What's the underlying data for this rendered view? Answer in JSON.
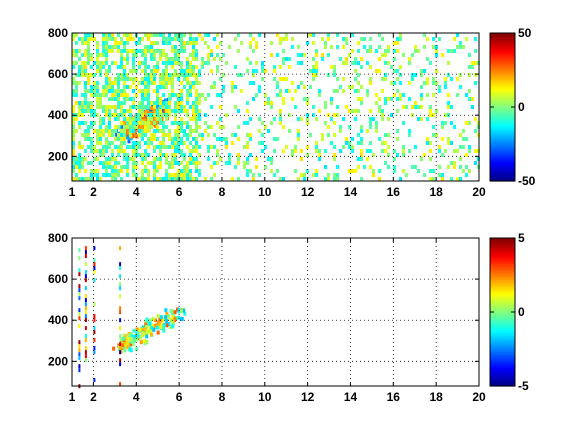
{
  "chart_data": [
    {
      "type": "heatmap",
      "title": "",
      "xlabel": "",
      "ylabel": "",
      "xlim": [
        1,
        20
      ],
      "ylim": [
        80,
        800
      ],
      "x_ticks": [
        1,
        2,
        4,
        6,
        8,
        10,
        12,
        14,
        16,
        18,
        20
      ],
      "y_ticks": [
        200,
        400,
        600,
        800
      ],
      "grid": true,
      "colormap": "jet",
      "colorbar": {
        "range": [
          -50,
          50
        ],
        "ticks": [
          -50,
          0,
          50
        ]
      },
      "features": [
        {
          "kind": "diagonal-ridge",
          "x_range": [
            3.3,
            5.3
          ],
          "y_range": [
            300,
            460
          ],
          "value": -30
        },
        {
          "kind": "diagonal-ridge",
          "x_range": [
            3.5,
            5.0
          ],
          "y_range": [
            330,
            420
          ],
          "value": 30
        },
        {
          "kind": "scatter-noise",
          "x_range": [
            1,
            20
          ],
          "y_range": [
            80,
            800
          ],
          "value_range": [
            -15,
            15
          ]
        }
      ]
    },
    {
      "type": "heatmap",
      "title": "",
      "xlabel": "",
      "ylabel": "",
      "xlim": [
        1,
        20
      ],
      "ylim": [
        80,
        800
      ],
      "x_ticks": [
        1,
        2,
        4,
        6,
        8,
        10,
        12,
        14,
        16,
        18,
        20
      ],
      "y_ticks": [
        200,
        400,
        600,
        800
      ],
      "grid": true,
      "colormap": "jet",
      "colorbar": {
        "range": [
          -5,
          5
        ],
        "ticks": [
          -5,
          0,
          5
        ]
      },
      "features": [
        {
          "kind": "diagonal-ridge",
          "x_range": [
            3.2,
            6.0
          ],
          "y_range": [
            280,
            450
          ],
          "value_range": [
            -2,
            3
          ]
        },
        {
          "kind": "vertical-streak",
          "x": 1.3,
          "y_range": [
            80,
            770
          ]
        },
        {
          "kind": "vertical-streak",
          "x": 1.6,
          "y_range": [
            200,
            780
          ]
        },
        {
          "kind": "vertical-streak",
          "x": 2.0,
          "y_range": [
            80,
            780
          ]
        },
        {
          "kind": "vertical-streak",
          "x": 3.2,
          "y_range": [
            80,
            760
          ]
        }
      ]
    }
  ]
}
